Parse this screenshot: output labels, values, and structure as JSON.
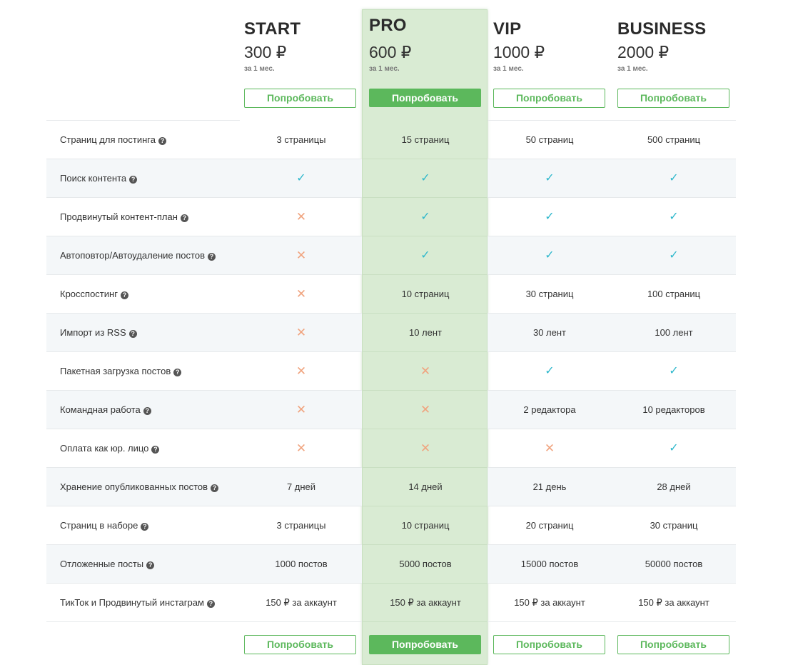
{
  "currency": "₽",
  "plans": [
    {
      "name": "START",
      "price": "300 ₽",
      "period": "за 1 мес.",
      "button": "Попробовать"
    },
    {
      "name": "PRO",
      "price": "600 ₽",
      "period": "за 1 мес.",
      "button": "Попробовать"
    },
    {
      "name": "VIP",
      "price": "1000 ₽",
      "period": "за 1 мес.",
      "button": "Попробовать"
    },
    {
      "name": "BUSINESS",
      "price": "2000 ₽",
      "period": "за 1 мес.",
      "button": "Попробовать"
    }
  ],
  "help_icon": "question-circle-icon",
  "check_icon": "check-icon",
  "cross_icon": "cross-icon",
  "colors": {
    "accent": "#5cb85c",
    "highlight": "#d9ebd3",
    "check": "#2fb8cc",
    "cross": "#f0a47f"
  },
  "rows": [
    {
      "feature": "Страниц для постинга",
      "cells": [
        "3 страницы",
        "15 страниц",
        "50 страниц",
        "500 страниц"
      ]
    },
    {
      "feature": "Поиск контента",
      "cells": [
        "✓",
        "✓",
        "✓",
        "✓"
      ]
    },
    {
      "feature": "Продвинутый контент-план",
      "cells": [
        "✕",
        "✓",
        "✓",
        "✓"
      ]
    },
    {
      "feature": "Автоповтор/Автоудаление постов",
      "cells": [
        "✕",
        "✓",
        "✓",
        "✓"
      ]
    },
    {
      "feature": "Кросспостинг",
      "cells": [
        "✕",
        "10 страниц",
        "30 страниц",
        "100 страниц"
      ]
    },
    {
      "feature": "Импорт из RSS",
      "cells": [
        "✕",
        "10 лент",
        "30 лент",
        "100 лент"
      ]
    },
    {
      "feature": "Пакетная загрузка постов",
      "cells": [
        "✕",
        "✕",
        "✓",
        "✓"
      ]
    },
    {
      "feature": "Командная работа",
      "cells": [
        "✕",
        "✕",
        "2 редактора",
        "10 редакторов"
      ]
    },
    {
      "feature": "Оплата как юр. лицо",
      "cells": [
        "✕",
        "✕",
        "✕",
        "✓"
      ]
    },
    {
      "feature": "Хранение опубликованных постов",
      "cells": [
        "7 дней",
        "14 дней",
        "21 день",
        "28 дней"
      ]
    },
    {
      "feature": "Страниц в наборе",
      "cells": [
        "3 страницы",
        "10 страниц",
        "20 страниц",
        "30 страниц"
      ]
    },
    {
      "feature": "Отложенные посты",
      "cells": [
        "1000 постов",
        "5000 постов",
        "15000 постов",
        "50000 постов"
      ]
    },
    {
      "feature": "ТикТок и Продвинутый инстаграм",
      "cells": [
        "150 ₽ за аккаунт",
        "150 ₽ за аккаунт",
        "150 ₽ за аккаунт",
        "150 ₽ за аккаунт"
      ]
    }
  ]
}
